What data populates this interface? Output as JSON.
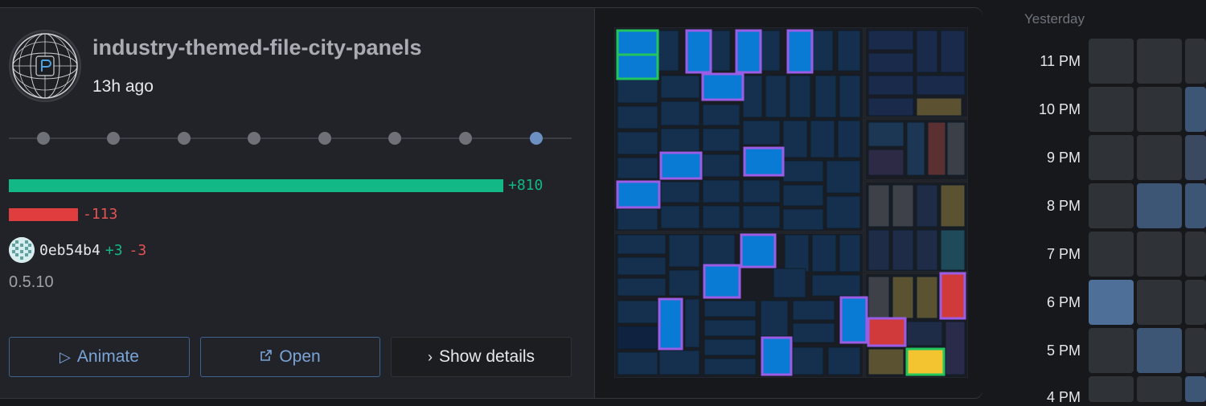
{
  "repo": {
    "title": "industry-themed-file-city-panels",
    "time_ago": "13h ago",
    "version": "0.5.10"
  },
  "timeline": {
    "points": 8,
    "active_index": 7
  },
  "stats": {
    "additions": "+810",
    "deletions": "-113",
    "additions_fraction": 1.0,
    "deletions_fraction": 0.14
  },
  "commit": {
    "hash": "0eb54b4",
    "additions": "+3",
    "deletions": "-3"
  },
  "buttons": {
    "animate": "Animate",
    "open": "Open",
    "details": "Show details"
  },
  "icons": {
    "animate": "play-icon",
    "open": "external-link-icon",
    "details": "chevron-right-icon"
  },
  "colors": {
    "additions": "#12b886",
    "deletions": "#e03e3e",
    "accent": "#7ba4d6",
    "highlight_purple": "#9b5de5",
    "highlight_green": "#22c55e",
    "highlight_yellow": "#f4c430"
  },
  "heatmap": {
    "header": "Yesterday",
    "hours": [
      "11 PM",
      "10 PM",
      "9 PM",
      "8 PM",
      "7 PM",
      "6 PM",
      "5 PM",
      "4 PM"
    ],
    "levels": [
      [
        0,
        0,
        0
      ],
      [
        0,
        0,
        2
      ],
      [
        0,
        0,
        1
      ],
      [
        0,
        2,
        2
      ],
      [
        0,
        0,
        0
      ],
      [
        3,
        0,
        0
      ],
      [
        0,
        2,
        0
      ],
      [
        0,
        0,
        2
      ]
    ]
  }
}
